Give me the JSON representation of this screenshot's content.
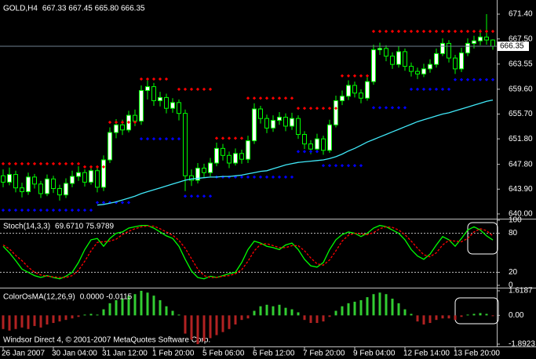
{
  "chart_data": [
    {
      "type": "candlestick",
      "title": "GOLD,H4",
      "subtitle": "667.33 667.45 665.80 666.35",
      "categories": [
        "26 Jan 2007",
        null,
        null,
        null,
        null,
        null,
        null,
        null,
        "30 Jan 04:00",
        null,
        null,
        null,
        null,
        null,
        null,
        null,
        "31 Jan 12:00",
        null,
        null,
        null,
        null,
        null,
        null,
        null,
        "1 Feb 20:00",
        null,
        null,
        null,
        null,
        null,
        null,
        null,
        "5 Feb 06:00",
        null,
        null,
        null,
        null,
        null,
        null,
        null,
        "6 Feb 12:00",
        null,
        null,
        null,
        null,
        null,
        null,
        null,
        "7 Feb 20:00",
        null,
        null,
        null,
        null,
        null,
        null,
        null,
        "9 Feb 04:00",
        null,
        null,
        null,
        null,
        null,
        null,
        null,
        "12 Feb 14:00",
        null,
        null,
        null,
        null,
        null,
        null,
        null,
        "13 Feb 20:00",
        null,
        null,
        null,
        null,
        null,
        null
      ],
      "open": [
        646.0,
        645.0,
        646.2,
        644.1,
        643.5,
        645.8,
        644.7,
        643.2,
        645.5,
        644.0,
        643.0,
        644.8,
        645.9,
        646.5,
        645.0,
        646.8,
        644.2,
        648.5,
        652.8,
        654.0,
        653.2,
        655.5,
        654.6,
        659.4,
        660.0,
        657.8,
        658.3,
        656.6,
        657.5,
        655.8,
        646.0,
        645.3,
        647.2,
        646.5,
        648.0,
        650.3,
        649.2,
        648.0,
        649.5,
        648.6,
        651.5,
        656.5,
        655.0,
        653.5,
        654.7,
        655.2,
        653.8,
        655.0,
        652.5,
        651.0,
        650.2,
        651.8,
        650.0,
        654.0,
        657.8,
        658.5,
        660.2,
        659.0,
        658.2,
        660.8,
        665.8,
        666.0,
        664.8,
        663.5,
        665.5,
        663.2,
        662.4,
        662.0,
        662.8,
        663.5,
        665.2,
        666.8,
        664.5,
        662.8,
        665.3,
        666.8,
        667.2,
        667.8,
        667.33
      ],
      "high": [
        647.0,
        647.3,
        646.8,
        644.9,
        646.5,
        646.3,
        645.2,
        646.2,
        646.0,
        644.6,
        645.6,
        646.8,
        647.5,
        647.0,
        647.6,
        647.2,
        649.2,
        653.6,
        654.9,
        654.8,
        656.2,
        656.4,
        660.2,
        661.0,
        660.6,
        659.2,
        658.9,
        658.2,
        658.0,
        656.4,
        647.0,
        648.0,
        647.9,
        648.8,
        651.2,
        651.0,
        649.8,
        650.3,
        650.1,
        652.3,
        657.4,
        657.0,
        655.6,
        655.5,
        656.0,
        655.8,
        655.9,
        655.5,
        653.0,
        651.6,
        652.6,
        652.3,
        654.8,
        658.6,
        659.4,
        661.0,
        660.8,
        659.6,
        661.6,
        666.6,
        666.9,
        666.5,
        665.4,
        666.3,
        666.0,
        663.8,
        663.0,
        663.6,
        664.3,
        666.0,
        667.6,
        667.3,
        665.0,
        666.1,
        667.6,
        668.0,
        669.0,
        671.4,
        667.45
      ],
      "low": [
        644.2,
        644.5,
        643.4,
        642.6,
        643.0,
        644.0,
        642.5,
        642.8,
        643.3,
        642.1,
        642.5,
        644.2,
        645.2,
        644.3,
        644.6,
        643.4,
        643.6,
        648.0,
        651.9,
        652.4,
        652.8,
        653.8,
        654.0,
        658.0,
        657.0,
        656.9,
        655.8,
        655.9,
        654.7,
        643.6,
        644.4,
        644.8,
        645.7,
        645.9,
        647.5,
        648.4,
        647.2,
        647.6,
        647.9,
        648.0,
        651.0,
        654.2,
        652.7,
        652.9,
        654.0,
        653.0,
        653.2,
        651.8,
        650.2,
        649.4,
        649.8,
        649.3,
        649.6,
        653.6,
        657.1,
        657.9,
        658.3,
        657.4,
        657.8,
        660.3,
        665.0,
        664.0,
        662.8,
        663.0,
        662.5,
        661.6,
        661.2,
        661.5,
        662.2,
        663.0,
        664.8,
        663.8,
        662.0,
        662.3,
        664.8,
        666.0,
        666.5,
        666.6,
        665.8
      ],
      "close": [
        645.0,
        646.2,
        644.1,
        643.5,
        645.8,
        644.7,
        643.2,
        645.5,
        644.0,
        643.0,
        644.8,
        645.9,
        646.5,
        645.0,
        646.8,
        644.2,
        648.5,
        652.8,
        654.0,
        653.2,
        655.5,
        654.6,
        659.4,
        660.0,
        657.8,
        658.3,
        656.6,
        657.5,
        655.8,
        646.0,
        645.3,
        647.2,
        646.5,
        648.0,
        650.3,
        649.2,
        648.0,
        649.5,
        648.6,
        651.5,
        656.5,
        655.0,
        653.5,
        654.7,
        655.2,
        653.8,
        655.0,
        652.5,
        651.0,
        650.2,
        651.8,
        650.0,
        654.0,
        657.8,
        658.5,
        660.2,
        659.0,
        658.2,
        660.8,
        665.8,
        666.0,
        664.8,
        663.5,
        665.5,
        663.2,
        662.4,
        662.0,
        662.8,
        663.5,
        665.2,
        666.8,
        664.5,
        662.8,
        665.3,
        666.8,
        667.2,
        667.8,
        667.33,
        666.35
      ],
      "candle_color": "#00ff00",
      "up_body": "#ffffff",
      "down_body": "#000000",
      "series": [
        {
          "style": "dots",
          "color": "#ff0000",
          "values": [
            647.9,
            647.9,
            647.9,
            647.9,
            647.9,
            647.9,
            647.9,
            647.9,
            647.9,
            647.9,
            647.9,
            647.9,
            647.9,
            647.4,
            647.4,
            647.4,
            647.4,
            654.4,
            654.4,
            654.4,
            654.4,
            654.4,
            661.2,
            661.2,
            661.2,
            661.2,
            661.2,
            null,
            659.6,
            659.6,
            659.6,
            659.6,
            659.6,
            659.6,
            651.9,
            651.9,
            651.9,
            651.9,
            651.9,
            658.2,
            658.2,
            658.2,
            658.2,
            658.2,
            658.2,
            658.2,
            658.2,
            656.6,
            656.6,
            656.6,
            656.6,
            656.6,
            656.6,
            656.6,
            661.7,
            661.7,
            661.7,
            661.7,
            661.7,
            668.7,
            668.7,
            668.7,
            668.7,
            668.7,
            668.7,
            668.7,
            668.7,
            668.7,
            668.7,
            668.7,
            668.7,
            668.7,
            668.7,
            668.7,
            668.7,
            668.7,
            668.7,
            668.7,
            668.7
          ]
        },
        {
          "style": "dots",
          "color": "#0000ff",
          "values": [
            640.6,
            640.6,
            640.6,
            640.6,
            640.6,
            640.6,
            640.6,
            640.6,
            640.6,
            640.6,
            640.6,
            640.6,
            640.6,
            640.6,
            640.6,
            641.8,
            641.8,
            641.8,
            641.8,
            641.8,
            641.8,
            null,
            651.8,
            651.8,
            651.8,
            651.8,
            651.8,
            651.8,
            651.8,
            642.8,
            642.8,
            642.8,
            642.8,
            642.8,
            645.8,
            645.8,
            645.8,
            645.8,
            645.8,
            645.8,
            645.8,
            645.8,
            645.8,
            645.8,
            645.8,
            645.8,
            645.8,
            649.8,
            649.8,
            649.8,
            649.8,
            647.6,
            647.6,
            647.6,
            647.6,
            647.6,
            647.6,
            647.6,
            null,
            656.7,
            656.7,
            656.7,
            656.7,
            656.7,
            656.7,
            659.6,
            659.6,
            659.6,
            659.6,
            659.6,
            659.6,
            659.6,
            661.1,
            661.1,
            661.1,
            661.1,
            661.1,
            661.1,
            661.1
          ]
        },
        {
          "style": "line",
          "color": "#40e8f8",
          "values": [
            null,
            null,
            null,
            null,
            null,
            null,
            null,
            null,
            null,
            null,
            null,
            null,
            null,
            null,
            null,
            641.4,
            641.5,
            641.7,
            641.9,
            642.2,
            642.5,
            642.8,
            643.2,
            643.5,
            643.8,
            644.1,
            644.4,
            644.7,
            645.0,
            645.3,
            645.5,
            645.6,
            645.7,
            645.8,
            645.8,
            645.9,
            645.9,
            646.0,
            646.1,
            646.3,
            646.5,
            646.7,
            646.8,
            647.1,
            647.4,
            647.7,
            647.9,
            648.1,
            648.2,
            648.3,
            648.4,
            648.5,
            648.7,
            649.0,
            649.4,
            649.9,
            650.3,
            650.8,
            651.3,
            651.7,
            652.1,
            652.5,
            652.9,
            653.3,
            653.7,
            654.1,
            654.5,
            654.8,
            655.1,
            655.4,
            655.7,
            655.9,
            656.2,
            656.5,
            656.8,
            657.1,
            657.4,
            657.7,
            657.9
          ]
        }
      ],
      "last_price": {
        "value": 666.35,
        "label": "666.35"
      },
      "ylim": [
        639.38,
        673.25
      ],
      "yticks": [
        {
          "value": 671.4,
          "label": "671.40"
        },
        {
          "value": 667.5,
          "label": "667.50"
        },
        663.55,
        {
          "value": 659.6,
          "label": "659.60"
        },
        {
          "value": 655.7,
          "label": "655.70"
        },
        {
          "value": 651.8,
          "label": "651.80"
        },
        {
          "value": 647.8,
          "label": "647.80"
        },
        {
          "value": 643.9,
          "label": "643.90"
        },
        {
          "value": 640,
          "label": "640.00"
        }
      ]
    },
    {
      "type": "line",
      "title": "Stoch(14,3,3)",
      "subtitle": "69.6710 75.9789",
      "ylim": [
        0,
        100
      ],
      "yticks": [
        0,
        20,
        80,
        100
      ],
      "levels": [
        20,
        80
      ],
      "series": [
        {
          "color": "#00ff00",
          "values": [
            60,
            50,
            38,
            25,
            20,
            15,
            12,
            15,
            12,
            10,
            14,
            20,
            35,
            55,
            70,
            72,
            60,
            72,
            80,
            82,
            88,
            90,
            92,
            92,
            88,
            82,
            76,
            72,
            60,
            40,
            22,
            12,
            10,
            14,
            12,
            15,
            18,
            20,
            35,
            55,
            68,
            65,
            60,
            58,
            55,
            62,
            65,
            55,
            40,
            30,
            28,
            35,
            55,
            70,
            78,
            82,
            80,
            75,
            80,
            88,
            92,
            90,
            85,
            80,
            70,
            55,
            45,
            40,
            48,
            62,
            75,
            70,
            60,
            72,
            85,
            90,
            85,
            76,
            69.671
          ]
        },
        {
          "color": "#ff0000",
          "dash": true,
          "values": [
            62,
            56,
            46,
            38,
            28,
            20,
            16,
            14,
            13,
            12,
            12,
            15,
            23,
            37,
            53,
            66,
            67,
            68,
            71,
            78,
            83,
            87,
            90,
            91,
            91,
            87,
            82,
            77,
            69,
            57,
            41,
            25,
            15,
            12,
            12,
            14,
            15,
            18,
            24,
            37,
            53,
            63,
            64,
            61,
            58,
            58,
            61,
            61,
            53,
            42,
            33,
            31,
            39,
            53,
            68,
            77,
            80,
            79,
            78,
            81,
            87,
            90,
            89,
            85,
            78,
            68,
            57,
            47,
            44,
            50,
            62,
            69,
            68,
            67,
            72,
            82,
            87,
            84,
            75.9789
          ]
        }
      ]
    },
    {
      "type": "bar",
      "title": "ColorOsMA(12,26,9)",
      "subtitle": "0.0000 -0.0115",
      "ylim": [
        -1.8923,
        1.6187
      ],
      "yticks": [
        -1.8923,
        {
          "value": 0,
          "label": "0.00"
        },
        1.6187
      ],
      "up_color": "#32cd32",
      "down_color": "#b22222",
      "values": [
        -0.9,
        -1.0,
        -0.9,
        -0.8,
        -0.9,
        -0.7,
        -0.8,
        -0.6,
        -0.5,
        -0.4,
        -0.3,
        -0.2,
        -0.1,
        0.05,
        0.1,
        0.05,
        0.4,
        0.8,
        1.0,
        1.1,
        1.3,
        1.4,
        1.6187,
        1.5,
        1.3,
        1.0,
        0.6,
        0.3,
        0.05,
        -1.2,
        -1.6,
        -1.8923,
        -1.7,
        -1.5,
        -1.3,
        -1.1,
        -0.9,
        -0.6,
        -0.3,
        -0.2,
        0.3,
        0.6,
        0.7,
        0.6,
        0.7,
        0.5,
        0.4,
        0.2,
        -0.3,
        -0.5,
        -0.5,
        -0.4,
        -0.1,
        0.3,
        0.6,
        0.8,
        0.9,
        1.0,
        1.2,
        1.4,
        1.5,
        1.4,
        1.1,
        0.8,
        0.4,
        0.1,
        -0.4,
        -0.6,
        -0.5,
        -0.3,
        -0.2,
        -0.2,
        -0.3,
        -0.1,
        0.05,
        0.1,
        0.15,
        0.1,
        -0.0115
      ]
    }
  ],
  "footer": "Windsor Direct 4, © 2001-2007 MetaQuotes Software Corp."
}
